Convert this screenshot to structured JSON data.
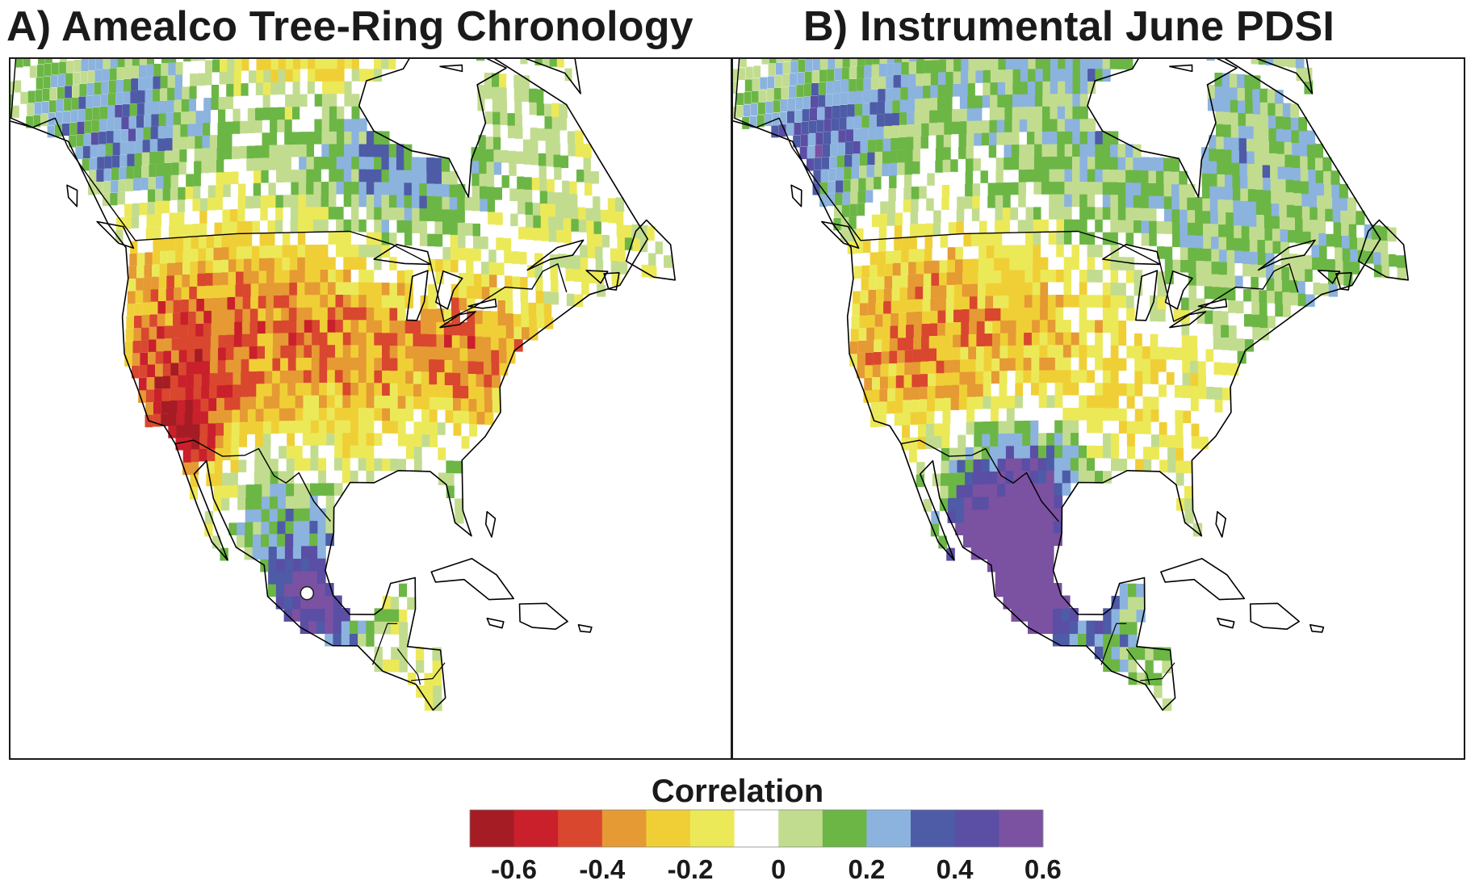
{
  "panels": [
    {
      "label": "A)",
      "title": "Amealco Tree-Ring Chronology"
    },
    {
      "label": "B)",
      "title": "Instrumental June PDSI"
    }
  ],
  "site_marker": {
    "lon": -100.2,
    "lat": 20.2,
    "color": "#ffffff"
  },
  "map_extent": {
    "lon_min": -170,
    "lon_max": -50,
    "lat_min": 10,
    "lat_max": 75
  },
  "colorbar": {
    "title": "Correlation",
    "colors": [
      "#a51c24",
      "#c9202b",
      "#d9472f",
      "#e59a33",
      "#f0cf36",
      "#ece959",
      "#ffffff",
      "#c2dc8f",
      "#6cb646",
      "#8bb3de",
      "#4e5ba7",
      "#5a4ea5",
      "#7b51a2"
    ],
    "tick_labels": [
      "-0.6",
      "-0.4",
      "-0.2",
      "0",
      "0.2",
      "0.4",
      "0.6"
    ]
  },
  "colors": {
    "frame": "#1a1a1a",
    "coast": "#000000",
    "ocean": "#ffffff"
  }
}
